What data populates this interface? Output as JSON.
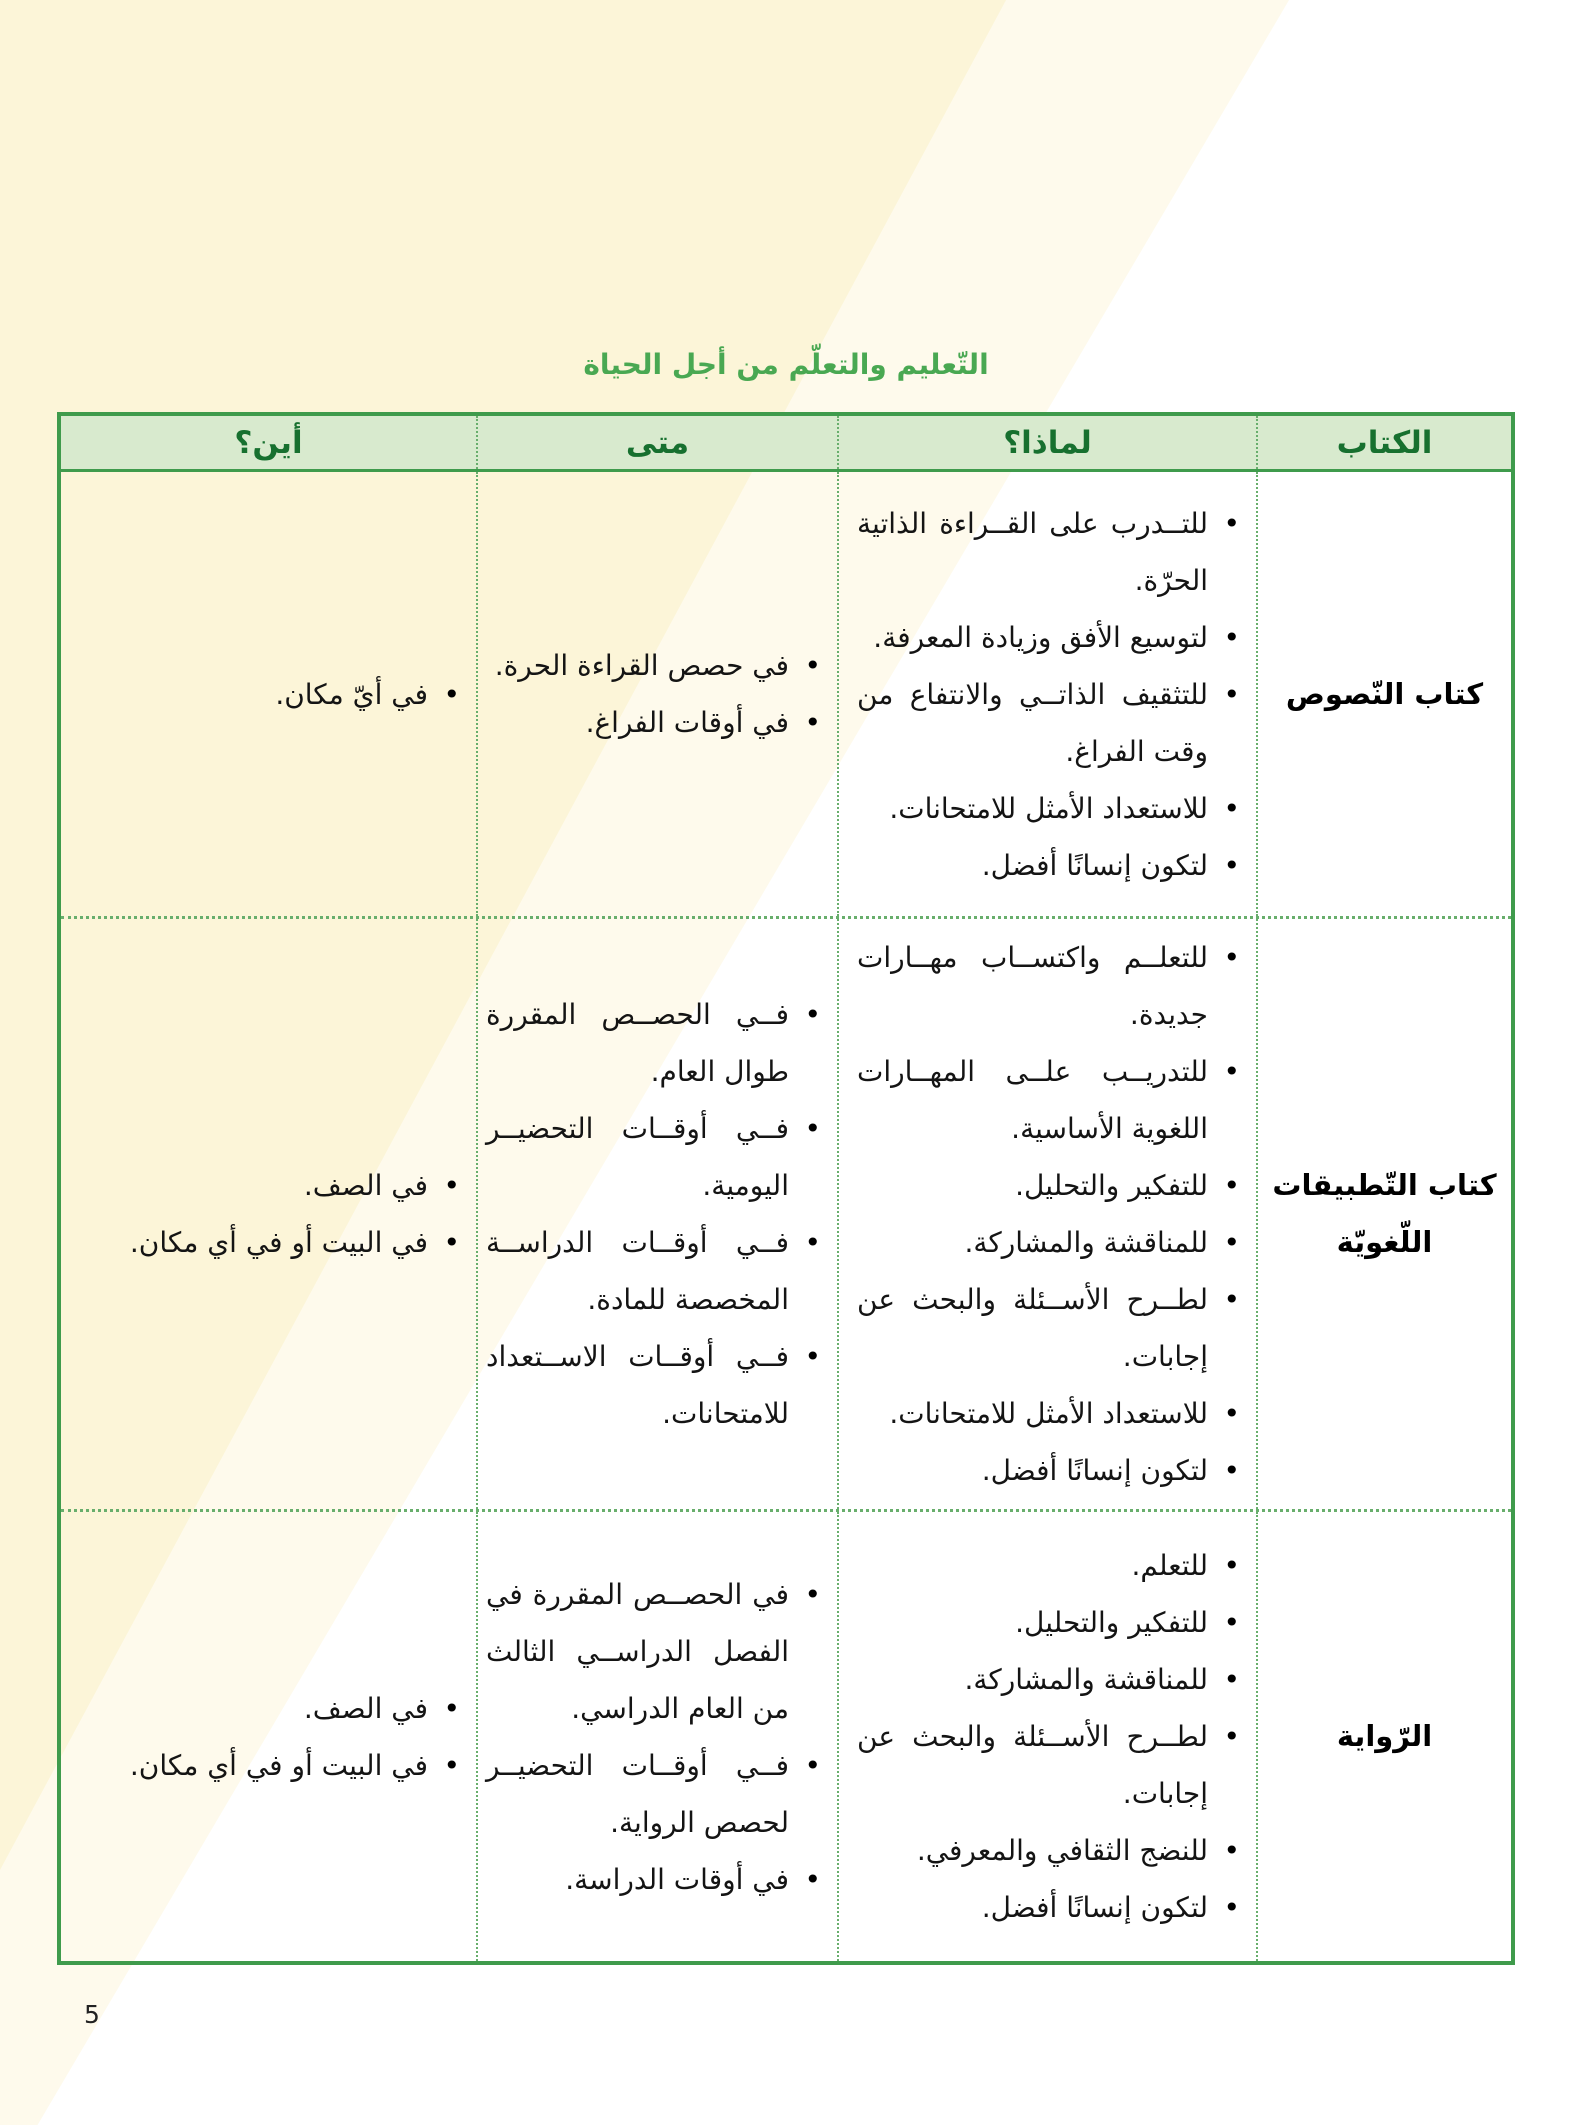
{
  "page": {
    "title": "التّعليم والتعلّم من أجل الحياة",
    "page_number": "5"
  },
  "colors": {
    "accent_green_border": "#3f9b4c",
    "header_background": "#d8eace",
    "header_text_green": "#17702f",
    "title_green": "#49a852",
    "page_tint_cream": "#fcf5d8"
  },
  "table": {
    "headers": [
      "الكتاب",
      "لماذا؟",
      "متى",
      "أين؟"
    ],
    "rows": [
      {
        "book": "كتاب النّصوص",
        "why": [
          "للتــدرب على القــراءة الذاتية الحرّة.",
          "لتوسيع الأفق وزيادة المعرفة.",
          "للتثقيف الذاتــي والانتفاع من وقت الفراغ.",
          "للاستعداد الأمثل للامتحانات.",
          "لتكون إنسانًا أفضل."
        ],
        "when": [
          "في حصص القراءة الحرة.",
          "في أوقات الفراغ."
        ],
        "where": [
          "في أيّ مكان."
        ]
      },
      {
        "book": "كتاب التّطبيقات اللّغويّة",
        "why": [
          "للتعلــم واكتســاب مهــارات جديدة.",
          "للتدريــب علــى المهــارات اللغوية الأساسية.",
          "للتفكير والتحليل.",
          "للمناقشة والمشاركة.",
          "لطــرح الأســئلة والبحث عن إجابات.",
          "للاستعداد الأمثل للامتحانات.",
          "لتكون إنسانًا أفضل."
        ],
        "when": [
          "فــي الحصــص المقررة طوال العام.",
          "فــي أوقــات التحضيــر اليومية.",
          "فــي أوقــات الدراســة المخصصة للمادة.",
          "فــي أوقــات الاســتعداد للامتحانات."
        ],
        "where": [
          "في الصف.",
          "في البيت أو في أي مكان."
        ]
      },
      {
        "book": "الرّواية",
        "why": [
          "للتعلم.",
          "للتفكير والتحليل.",
          "للمناقشة والمشاركة.",
          "لطــرح الأســئلة والبحث عن إجابات.",
          "للنضج الثقافي والمعرفي.",
          "لتكون إنسانًا أفضل."
        ],
        "when": [
          "في الحصــص المقررة في الفصل الدراســي الثالث من العام الدراسي.",
          "فــي أوقــات التحضيــر لحصص الرواية.",
          "في أوقات الدراسة."
        ],
        "where": [
          "في الصف.",
          "في البيت أو في أي مكان."
        ]
      }
    ]
  }
}
